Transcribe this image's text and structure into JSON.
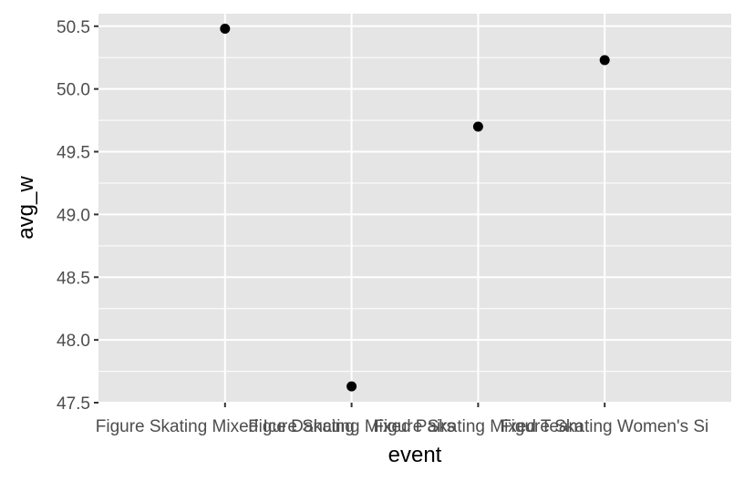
{
  "chart_data": {
    "type": "scatter",
    "xlabel": "event",
    "ylabel": "avg_w",
    "categories": [
      "Figure Skating Mixed Ice Dancing",
      "Figure Skating Mixed Pairs",
      "Figure Skating Mixed Team",
      "Figure Skating Women's Singles"
    ],
    "category_labels_visible": [
      "Figure Skating Mixed Ice Dancing",
      "Figure Skating Mixed Pairs",
      "Figure Skating Mixed Team",
      "Figure Skating Women's Si"
    ],
    "values": [
      50.48,
      47.63,
      49.7,
      50.23
    ],
    "ylim": [
      47.5,
      50.6
    ],
    "yticks": [
      "47.5",
      "48.0",
      "48.5",
      "49.0",
      "49.5",
      "50.0",
      "50.5"
    ],
    "grid": true,
    "legend": "none",
    "colors": {
      "panel": "#e5e5e5",
      "grid_major": "#ffffff",
      "point": "#000000",
      "tick_text": "#4d4d4d",
      "tick_mark": "#333333"
    }
  }
}
